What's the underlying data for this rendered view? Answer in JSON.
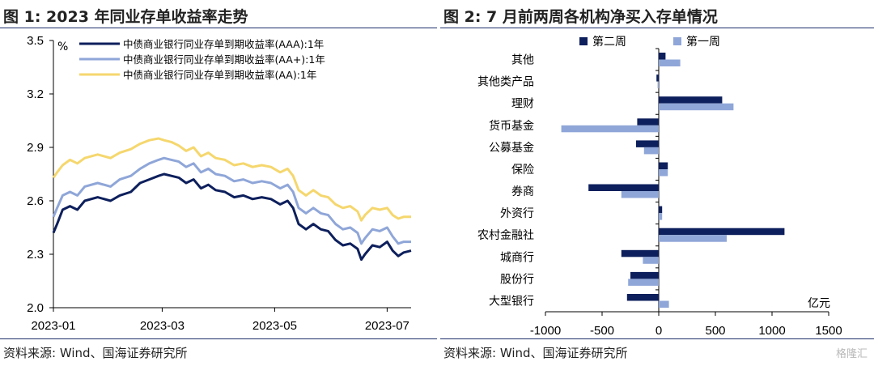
{
  "left": {
    "title": "图 1:  2023 年同业存单收益率走势",
    "source": "资料来源:  Wind、国海证券研究所"
  },
  "right": {
    "title": "图 2:  7 月前两周各机构净买入存单情况",
    "source": "资料来源:  Wind、国海证券研究所"
  },
  "watermark": "格隆汇",
  "chart_data": [
    {
      "type": "line",
      "unit_label": "%",
      "ylim": [
        2.0,
        3.5
      ],
      "yticks": [
        "2.0",
        "2.3",
        "2.6",
        "2.9",
        "3.2",
        "3.5"
      ],
      "xticks": [
        "2023-01",
        "2023-03",
        "2023-05",
        "2023-07"
      ],
      "x_range": [
        "2023-01-01",
        "2023-07-14"
      ],
      "grid": false,
      "legend": "top-right",
      "series": [
        {
          "name": "中债商业银行同业存单到期收益率(AAA):1年",
          "color": "#0d1f5c",
          "points": [
            [
              "2023-01-01",
              2.42
            ],
            [
              "2023-01-03",
              2.47
            ],
            [
              "2023-01-06",
              2.55
            ],
            [
              "2023-01-10",
              2.57
            ],
            [
              "2023-01-14",
              2.55
            ],
            [
              "2023-01-18",
              2.6
            ],
            [
              "2023-01-25",
              2.62
            ],
            [
              "2023-02-01",
              2.6
            ],
            [
              "2023-02-06",
              2.63
            ],
            [
              "2023-02-12",
              2.65
            ],
            [
              "2023-02-17",
              2.7
            ],
            [
              "2023-02-22",
              2.72
            ],
            [
              "2023-02-27",
              2.74
            ],
            [
              "2023-03-02",
              2.75
            ],
            [
              "2023-03-06",
              2.74
            ],
            [
              "2023-03-10",
              2.73
            ],
            [
              "2023-03-14",
              2.7
            ],
            [
              "2023-03-18",
              2.72
            ],
            [
              "2023-03-22",
              2.67
            ],
            [
              "2023-03-26",
              2.69
            ],
            [
              "2023-03-30",
              2.66
            ],
            [
              "2023-04-04",
              2.65
            ],
            [
              "2023-04-09",
              2.62
            ],
            [
              "2023-04-14",
              2.63
            ],
            [
              "2023-04-19",
              2.61
            ],
            [
              "2023-04-24",
              2.62
            ],
            [
              "2023-04-29",
              2.61
            ],
            [
              "2023-05-04",
              2.58
            ],
            [
              "2023-05-08",
              2.6
            ],
            [
              "2023-05-11",
              2.56
            ],
            [
              "2023-05-14",
              2.47
            ],
            [
              "2023-05-18",
              2.44
            ],
            [
              "2023-05-22",
              2.47
            ],
            [
              "2023-05-26",
              2.44
            ],
            [
              "2023-05-30",
              2.43
            ],
            [
              "2023-06-03",
              2.38
            ],
            [
              "2023-06-07",
              2.35
            ],
            [
              "2023-06-11",
              2.36
            ],
            [
              "2023-06-15",
              2.33
            ],
            [
              "2023-06-17",
              2.27
            ],
            [
              "2023-06-19",
              2.3
            ],
            [
              "2023-06-23",
              2.35
            ],
            [
              "2023-06-27",
              2.34
            ],
            [
              "2023-07-01",
              2.37
            ],
            [
              "2023-07-04",
              2.32
            ],
            [
              "2023-07-07",
              2.29
            ],
            [
              "2023-07-10",
              2.31
            ],
            [
              "2023-07-14",
              2.32
            ]
          ]
        },
        {
          "name": "中债商业银行同业存单到期收益率(AA+):1年",
          "color": "#8fa6d8",
          "points": [
            [
              "2023-01-01",
              2.51
            ],
            [
              "2023-01-03",
              2.56
            ],
            [
              "2023-01-06",
              2.63
            ],
            [
              "2023-01-10",
              2.65
            ],
            [
              "2023-01-14",
              2.63
            ],
            [
              "2023-01-18",
              2.68
            ],
            [
              "2023-01-25",
              2.7
            ],
            [
              "2023-02-01",
              2.68
            ],
            [
              "2023-02-06",
              2.72
            ],
            [
              "2023-02-12",
              2.74
            ],
            [
              "2023-02-17",
              2.78
            ],
            [
              "2023-02-22",
              2.81
            ],
            [
              "2023-02-27",
              2.83
            ],
            [
              "2023-03-02",
              2.84
            ],
            [
              "2023-03-06",
              2.83
            ],
            [
              "2023-03-10",
              2.82
            ],
            [
              "2023-03-14",
              2.79
            ],
            [
              "2023-03-18",
              2.81
            ],
            [
              "2023-03-22",
              2.76
            ],
            [
              "2023-03-26",
              2.78
            ],
            [
              "2023-03-30",
              2.75
            ],
            [
              "2023-04-04",
              2.74
            ],
            [
              "2023-04-09",
              2.71
            ],
            [
              "2023-04-14",
              2.72
            ],
            [
              "2023-04-19",
              2.7
            ],
            [
              "2023-04-24",
              2.71
            ],
            [
              "2023-04-29",
              2.7
            ],
            [
              "2023-05-04",
              2.67
            ],
            [
              "2023-05-08",
              2.69
            ],
            [
              "2023-05-11",
              2.65
            ],
            [
              "2023-05-14",
              2.56
            ],
            [
              "2023-05-18",
              2.53
            ],
            [
              "2023-05-22",
              2.56
            ],
            [
              "2023-05-26",
              2.53
            ],
            [
              "2023-05-30",
              2.52
            ],
            [
              "2023-06-03",
              2.47
            ],
            [
              "2023-06-07",
              2.44
            ],
            [
              "2023-06-11",
              2.45
            ],
            [
              "2023-06-15",
              2.42
            ],
            [
              "2023-06-17",
              2.36
            ],
            [
              "2023-06-19",
              2.39
            ],
            [
              "2023-06-23",
              2.44
            ],
            [
              "2023-06-27",
              2.43
            ],
            [
              "2023-07-01",
              2.45
            ],
            [
              "2023-07-04",
              2.4
            ],
            [
              "2023-07-07",
              2.36
            ],
            [
              "2023-07-10",
              2.37
            ],
            [
              "2023-07-14",
              2.37
            ]
          ]
        },
        {
          "name": "中债商业银行同业存单到期收益率(AA):1年",
          "color": "#f5d76e",
          "points": [
            [
              "2023-01-01",
              2.73
            ],
            [
              "2023-01-03",
              2.76
            ],
            [
              "2023-01-06",
              2.8
            ],
            [
              "2023-01-10",
              2.83
            ],
            [
              "2023-01-14",
              2.81
            ],
            [
              "2023-01-18",
              2.84
            ],
            [
              "2023-01-25",
              2.86
            ],
            [
              "2023-02-01",
              2.84
            ],
            [
              "2023-02-06",
              2.87
            ],
            [
              "2023-02-12",
              2.89
            ],
            [
              "2023-02-17",
              2.92
            ],
            [
              "2023-02-22",
              2.94
            ],
            [
              "2023-02-27",
              2.95
            ],
            [
              "2023-03-02",
              2.94
            ],
            [
              "2023-03-06",
              2.93
            ],
            [
              "2023-03-10",
              2.91
            ],
            [
              "2023-03-14",
              2.88
            ],
            [
              "2023-03-18",
              2.9
            ],
            [
              "2023-03-22",
              2.85
            ],
            [
              "2023-03-26",
              2.87
            ],
            [
              "2023-03-30",
              2.84
            ],
            [
              "2023-04-04",
              2.83
            ],
            [
              "2023-04-09",
              2.8
            ],
            [
              "2023-04-14",
              2.81
            ],
            [
              "2023-04-19",
              2.79
            ],
            [
              "2023-04-24",
              2.8
            ],
            [
              "2023-04-29",
              2.79
            ],
            [
              "2023-05-04",
              2.76
            ],
            [
              "2023-05-08",
              2.78
            ],
            [
              "2023-05-11",
              2.74
            ],
            [
              "2023-05-14",
              2.66
            ],
            [
              "2023-05-18",
              2.63
            ],
            [
              "2023-05-22",
              2.66
            ],
            [
              "2023-05-26",
              2.63
            ],
            [
              "2023-05-30",
              2.62
            ],
            [
              "2023-06-03",
              2.58
            ],
            [
              "2023-06-07",
              2.56
            ],
            [
              "2023-06-11",
              2.57
            ],
            [
              "2023-06-15",
              2.54
            ],
            [
              "2023-06-17",
              2.49
            ],
            [
              "2023-06-19",
              2.52
            ],
            [
              "2023-06-23",
              2.56
            ],
            [
              "2023-06-27",
              2.55
            ],
            [
              "2023-07-01",
              2.56
            ],
            [
              "2023-07-04",
              2.52
            ],
            [
              "2023-07-07",
              2.5
            ],
            [
              "2023-07-10",
              2.51
            ],
            [
              "2023-07-14",
              2.51
            ]
          ]
        }
      ]
    },
    {
      "type": "bar",
      "orientation": "horizontal",
      "unit_label": "亿元",
      "categories": [
        "其他",
        "其他类产品",
        "理财",
        "货币基金",
        "公募基金",
        "保险",
        "券商",
        "外资行",
        "农村金融社",
        "城商行",
        "股份行",
        "大型银行"
      ],
      "xlim": [
        -1000,
        1500
      ],
      "xticks": [
        "-1000",
        "-500",
        "0",
        "500",
        "1000",
        "1500"
      ],
      "grid": false,
      "legend": "top-left",
      "series": [
        {
          "name": "第二周",
          "color": "#0d1f5c",
          "values": [
            60,
            -20,
            560,
            -190,
            -200,
            80,
            -620,
            30,
            1110,
            -330,
            -250,
            -280
          ]
        },
        {
          "name": "第一周",
          "color": "#8fa6d8",
          "values": [
            190,
            -10,
            660,
            -860,
            -130,
            80,
            -330,
            30,
            600,
            -140,
            -270,
            90
          ]
        }
      ]
    }
  ]
}
